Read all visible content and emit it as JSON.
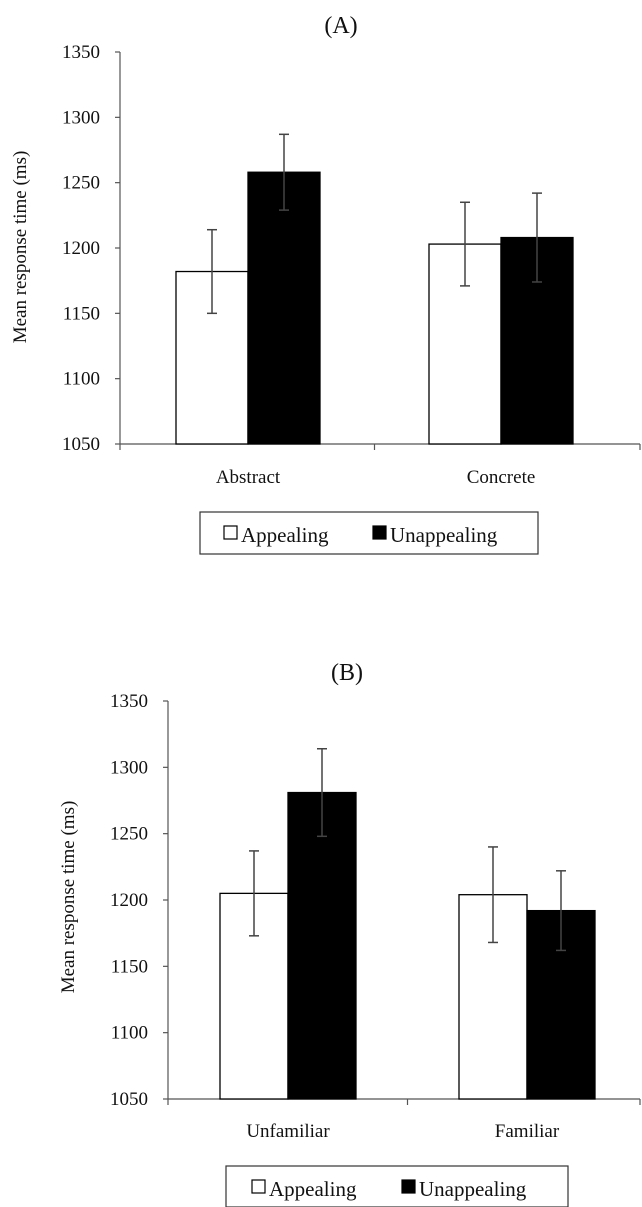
{
  "chart_data": [
    {
      "type": "bar",
      "title": "(A)",
      "xlabel": "",
      "ylabel": "Mean response time (ms)",
      "ylim": [
        1050,
        1350
      ],
      "yticks": [
        1050,
        1100,
        1150,
        1200,
        1250,
        1300,
        1350
      ],
      "categories": [
        "Abstract",
        "Concrete"
      ],
      "series": [
        {
          "name": "Appealing",
          "color": "#ffffff",
          "values": [
            1182,
            1203
          ],
          "errors": [
            32,
            32
          ]
        },
        {
          "name": "Unappealing",
          "color": "#000000",
          "values": [
            1258,
            1208
          ],
          "errors": [
            29,
            34
          ]
        }
      ],
      "legend": "bottom-center"
    },
    {
      "type": "bar",
      "title": "(B)",
      "xlabel": "",
      "ylabel": "Mean response time (ms)",
      "ylim": [
        1050,
        1350
      ],
      "yticks": [
        1050,
        1100,
        1150,
        1200,
        1250,
        1300,
        1350
      ],
      "categories": [
        "Unfamiliar",
        "Familiar"
      ],
      "series": [
        {
          "name": "Appealing",
          "color": "#ffffff",
          "values": [
            1205,
            1204
          ],
          "errors": [
            32,
            36
          ]
        },
        {
          "name": "Unappealing",
          "color": "#000000",
          "values": [
            1281,
            1192
          ],
          "errors": [
            33,
            30
          ]
        }
      ],
      "legend": "bottom-center"
    }
  ]
}
